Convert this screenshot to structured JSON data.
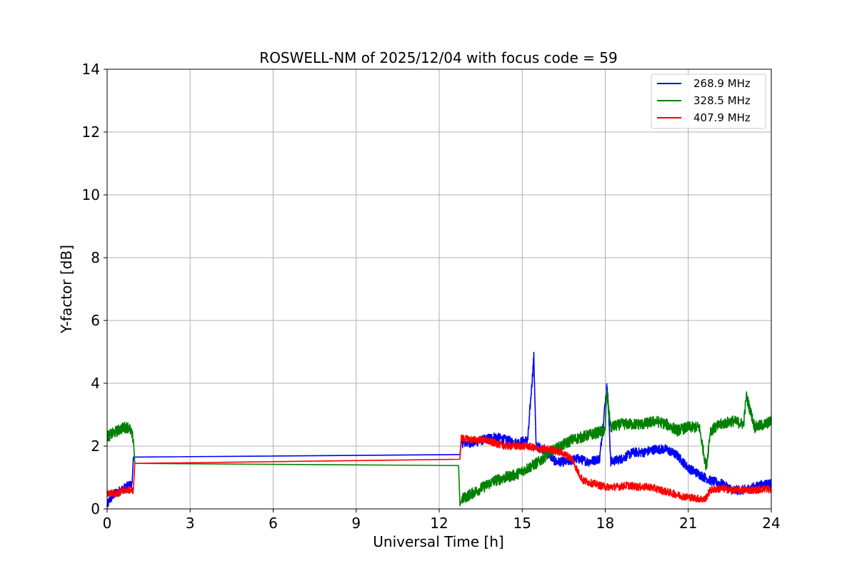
{
  "chart_data": {
    "type": "line",
    "title": "ROSWELL-NM of 2025/12/04 with focus code = 59",
    "xlabel": "Universal Time [h]",
    "ylabel": "Y-factor [dB]",
    "xlim": [
      0,
      24
    ],
    "ylim": [
      0,
      14
    ],
    "xticks": [
      0,
      3,
      6,
      9,
      12,
      15,
      18,
      21,
      24
    ],
    "yticks": [
      0,
      2,
      4,
      6,
      8,
      10,
      12,
      14
    ],
    "grid": true,
    "legend_position": "top-right",
    "series": [
      {
        "name": "268.9 MHz",
        "color": "#0000ff",
        "x": [
          0.0,
          0.1,
          0.3,
          0.5,
          0.7,
          0.9,
          0.95,
          12.75,
          12.8,
          13.2,
          13.6,
          14.0,
          14.4,
          14.8,
          15.2,
          15.42,
          15.5,
          15.8,
          16.2,
          16.6,
          17.0,
          17.4,
          17.8,
          18.07,
          18.2,
          18.6,
          19.0,
          19.4,
          19.8,
          20.2,
          20.6,
          21.0,
          21.4,
          21.8,
          22.2,
          22.6,
          23.0,
          23.4,
          23.8,
          24.0
        ],
        "y": [
          0.1,
          0.3,
          0.5,
          0.6,
          0.7,
          0.8,
          1.65,
          1.73,
          2.1,
          2.1,
          2.2,
          2.3,
          2.2,
          2.1,
          2.2,
          4.85,
          2.0,
          1.9,
          1.5,
          1.5,
          1.6,
          1.5,
          1.6,
          4.0,
          1.5,
          1.6,
          1.8,
          1.8,
          1.9,
          1.9,
          1.7,
          1.3,
          1.1,
          0.9,
          0.8,
          0.6,
          0.6,
          0.7,
          0.8,
          0.8
        ],
        "noise": 0.15
      },
      {
        "name": "328.5 MHz",
        "color": "#008000",
        "x": [
          0.0,
          0.2,
          0.4,
          0.6,
          0.8,
          0.95,
          1.0,
          12.7,
          12.75,
          12.8,
          13.2,
          13.6,
          14.0,
          14.4,
          14.8,
          15.2,
          15.6,
          16.0,
          16.4,
          16.8,
          17.2,
          17.6,
          18.0,
          18.05,
          18.2,
          18.6,
          19.0,
          19.4,
          19.8,
          20.2,
          20.6,
          21.0,
          21.4,
          21.65,
          21.8,
          22.2,
          22.6,
          23.0,
          23.1,
          23.4,
          23.8,
          24.0
        ],
        "y": [
          2.3,
          2.4,
          2.5,
          2.6,
          2.6,
          2.2,
          1.45,
          1.38,
          0.1,
          0.3,
          0.5,
          0.7,
          0.9,
          1.0,
          1.1,
          1.3,
          1.5,
          1.8,
          2.0,
          2.2,
          2.3,
          2.4,
          2.5,
          3.7,
          2.6,
          2.7,
          2.7,
          2.7,
          2.8,
          2.7,
          2.5,
          2.6,
          2.6,
          1.3,
          2.5,
          2.7,
          2.8,
          2.7,
          3.6,
          2.6,
          2.7,
          2.8
        ],
        "noise": 0.18
      },
      {
        "name": "407.9 MHz",
        "color": "#ff0000",
        "x": [
          0.0,
          0.2,
          0.4,
          0.6,
          0.8,
          0.95,
          1.0,
          12.75,
          12.8,
          13.2,
          13.6,
          14.0,
          14.4,
          14.8,
          15.2,
          15.6,
          16.0,
          16.4,
          16.8,
          17.0,
          17.2,
          17.6,
          18.0,
          18.4,
          18.8,
          19.2,
          19.6,
          20.0,
          20.4,
          20.8,
          21.2,
          21.6,
          21.8,
          22.2,
          22.6,
          23.0,
          23.4,
          23.8,
          24.0
        ],
        "y": [
          0.5,
          0.5,
          0.5,
          0.6,
          0.6,
          0.6,
          1.45,
          1.58,
          2.25,
          2.2,
          2.2,
          2.1,
          2.0,
          2.0,
          2.0,
          1.9,
          1.9,
          1.8,
          1.6,
          1.2,
          0.9,
          0.8,
          0.7,
          0.7,
          0.75,
          0.7,
          0.7,
          0.6,
          0.5,
          0.4,
          0.35,
          0.3,
          0.6,
          0.65,
          0.6,
          0.6,
          0.6,
          0.65,
          0.6
        ],
        "noise": 0.12
      }
    ]
  }
}
